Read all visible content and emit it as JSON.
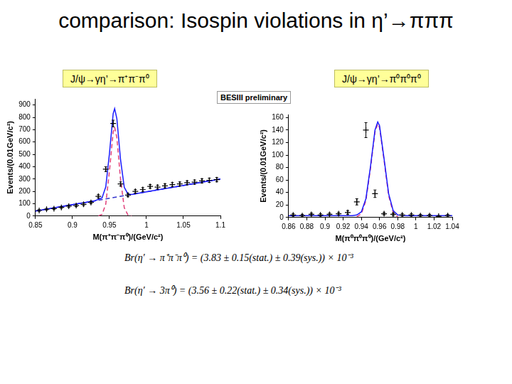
{
  "title": "comparison: Isospin violations in η’→πππ",
  "annotation": "BESIII preliminary",
  "formulas": [
    "Br(η′ → π⁺π⁻π⁰) = (3.83 ± 0.15(stat.) ± 0.39(sys.)) × 10⁻³",
    "Br(η′ → 3π⁰) = (3.56 ± 0.22(stat.) ± 0.34(sys.)) × 10⁻³"
  ],
  "chart_data": [
    {
      "type": "scatter",
      "title": "J/ψ→γη’→π⁺π⁻π⁰",
      "x_label": "M(π⁺π⁻π⁰)/(GeV/c²)",
      "y_label": "Events/(0.01GeV/c²)",
      "xlim": [
        0.85,
        1.1
      ],
      "xticks": [
        0.85,
        0.9,
        0.95,
        1,
        1.05,
        1.1
      ],
      "ylim": [
        0,
        950
      ],
      "yticks": [
        0,
        100,
        200,
        300,
        400,
        500,
        600,
        700,
        800,
        900
      ],
      "grid": false,
      "series": [
        {
          "type": "scatter",
          "color": "#000000",
          "marker": "cross",
          "x": [
            0.855,
            0.865,
            0.875,
            0.885,
            0.895,
            0.905,
            0.915,
            0.925,
            0.935,
            0.945,
            0.955,
            0.965,
            0.975,
            0.985,
            0.995,
            1.005,
            1.015,
            1.025,
            1.035,
            1.045,
            1.055,
            1.065,
            1.075,
            1.085,
            1.095
          ],
          "values": [
            45,
            55,
            60,
            70,
            80,
            85,
            95,
            110,
            160,
            380,
            750,
            260,
            170,
            200,
            215,
            240,
            235,
            245,
            255,
            260,
            270,
            275,
            285,
            290,
            295
          ],
          "errors": [
            7,
            7,
            8,
            8,
            9,
            9,
            10,
            10,
            13,
            19,
            27,
            16,
            13,
            14,
            15,
            15,
            15,
            16,
            16,
            16,
            16,
            17,
            17,
            17,
            17
          ]
        },
        {
          "type": "line",
          "color": "#1a1aff",
          "line_style": "solid",
          "x": [
            0.85,
            0.9,
            0.93,
            0.94,
            0.945,
            0.95,
            0.955,
            0.957,
            0.96,
            0.965,
            0.97,
            0.975,
            0.98,
            1.0,
            1.05,
            1.1
          ],
          "values": [
            40,
            92,
            123,
            147,
            236,
            508,
            830,
            871,
            789,
            456,
            233,
            178,
            175,
            196,
            248,
            300
          ]
        },
        {
          "type": "line",
          "color": "#3333cc",
          "line_style": "dashed",
          "x": [
            0.85,
            1.1
          ],
          "values": [
            40,
            300
          ]
        },
        {
          "type": "line",
          "color": "#e0407a",
          "line_style": "dashed",
          "x": [
            0.935,
            0.94,
            0.945,
            0.95,
            0.955,
            0.957,
            0.96,
            0.965,
            0.97,
            0.975,
            0.98
          ],
          "values": [
            1,
            13,
            97,
            364,
            681,
            720,
            635,
            296,
            68,
            8,
            1
          ]
        }
      ]
    },
    {
      "type": "scatter",
      "title": "J/ψ→γη’→π⁰π⁰π⁰",
      "x_label": "M(π⁰π⁰π⁰)/(GeV/c²)",
      "y_label": "Events/(0.01GeV/c²)",
      "xlim": [
        0.86,
        1.04
      ],
      "xticks": [
        0.86,
        0.88,
        0.9,
        0.92,
        0.94,
        0.96,
        0.98,
        1,
        1.02,
        1.04
      ],
      "ylim": [
        0,
        165
      ],
      "yticks": [
        0,
        20,
        40,
        60,
        80,
        100,
        120,
        140,
        160
      ],
      "grid": false,
      "series": [
        {
          "type": "scatter",
          "color": "#000000",
          "marker": "cross",
          "x": [
            0.865,
            0.875,
            0.885,
            0.895,
            0.905,
            0.915,
            0.925,
            0.935,
            0.945,
            0.955,
            0.965,
            0.975,
            0.985,
            0.995,
            1.005,
            1.015,
            1.025,
            1.035
          ],
          "values": [
            4,
            3,
            5,
            4,
            5,
            6,
            8,
            25,
            140,
            38,
            6,
            5,
            4,
            4,
            3,
            3,
            2,
            3
          ],
          "errors": [
            2,
            2,
            2,
            2,
            2,
            2,
            3,
            5,
            12,
            6,
            2,
            2,
            2,
            2,
            2,
            2,
            1,
            2
          ]
        },
        {
          "type": "line",
          "color": "#1a1aff",
          "line_style": "solid",
          "x": [
            0.86,
            0.9,
            0.93,
            0.935,
            0.94,
            0.945,
            0.95,
            0.955,
            0.958,
            0.96,
            0.965,
            0.97,
            0.975,
            0.98,
            0.99,
            1.04
          ],
          "values": [
            3,
            3,
            3,
            4,
            9,
            30,
            81,
            140,
            153,
            147,
            94,
            38,
            11,
            4,
            3,
            3
          ]
        },
        {
          "type": "line",
          "color": "#e0407a",
          "line_style": "dashed",
          "x": [
            0.935,
            0.94,
            0.945,
            0.95,
            0.955,
            0.958,
            0.96,
            0.965,
            0.97,
            0.975,
            0.98
          ],
          "values": [
            1,
            6,
            27,
            78,
            137,
            150,
            144,
            91,
            35,
            8,
            1
          ]
        }
      ]
    }
  ]
}
